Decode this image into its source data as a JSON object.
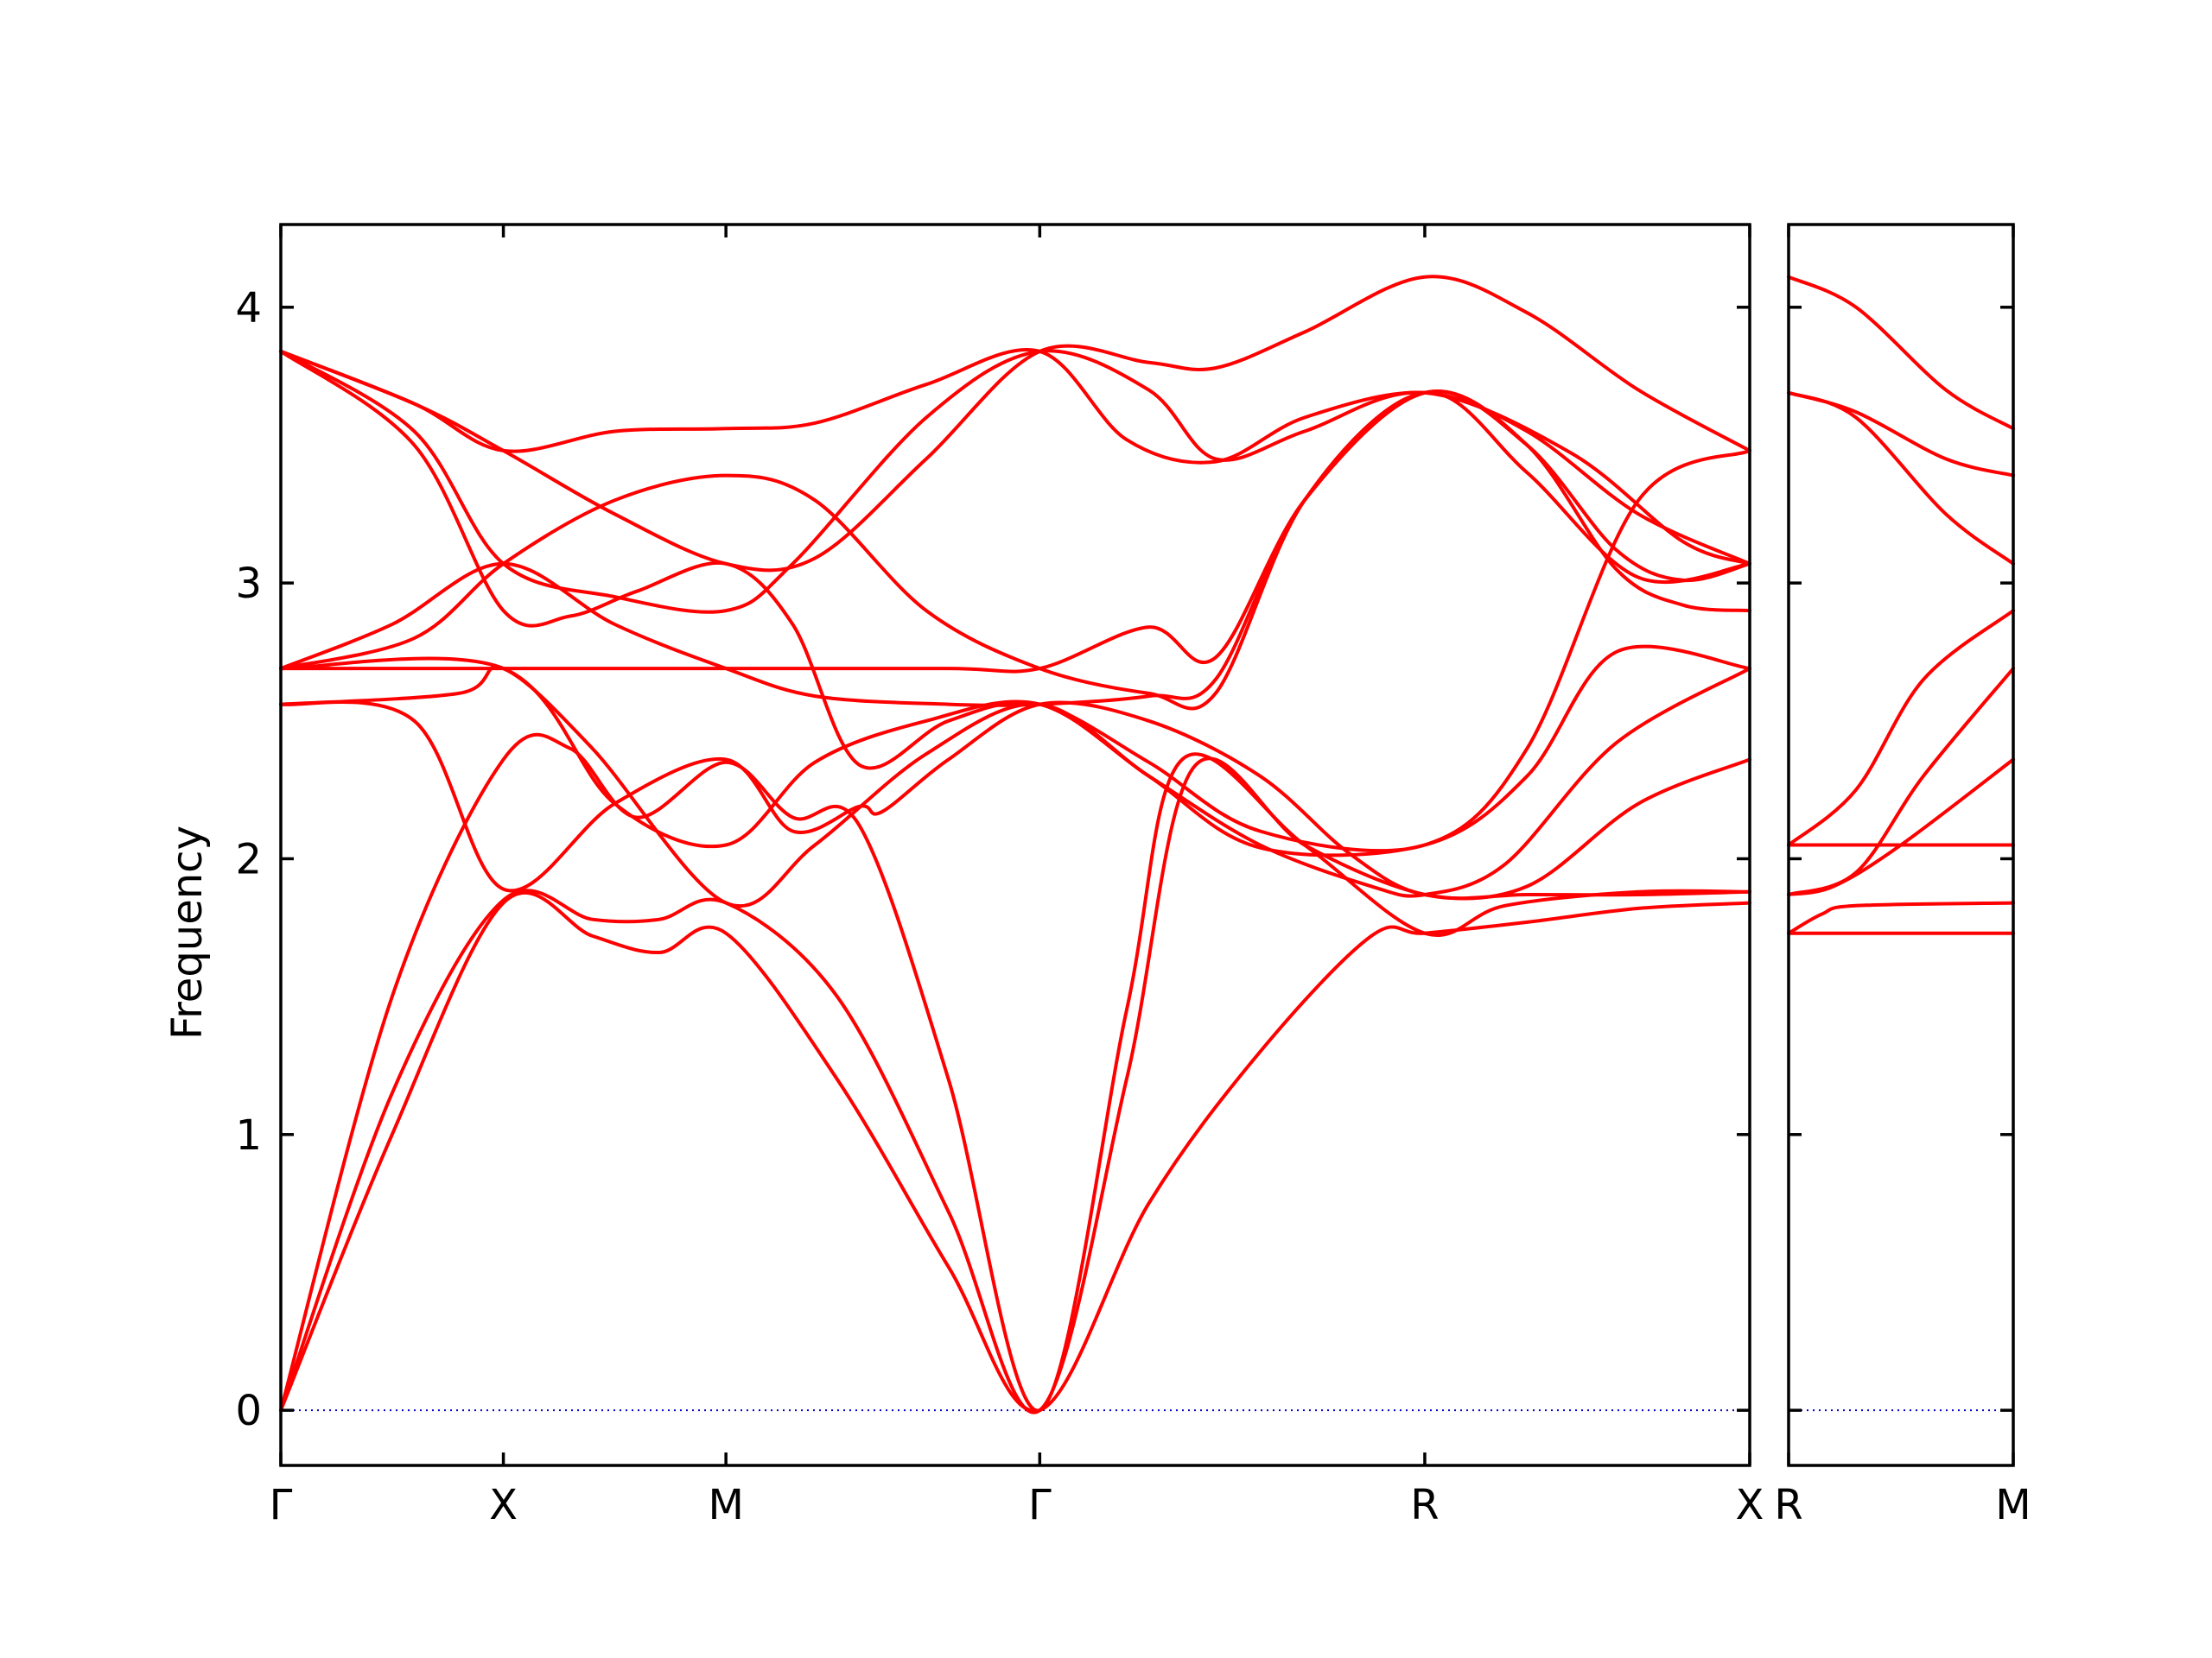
{
  "chart_data": {
    "type": "line",
    "title": "",
    "ylabel": "Frequency",
    "ylim": [
      -0.2,
      4.3
    ],
    "yticks": [
      0,
      1,
      2,
      3,
      4
    ],
    "grid": false,
    "colors": {
      "bands": "#ff0000",
      "zero_line": "#0000cc"
    },
    "panels": [
      {
        "name": "main",
        "xlim": [
          0,
          6.6
        ],
        "x_labels": [
          {
            "x": 0,
            "label": "Γ"
          },
          {
            "x": 1,
            "label": "X"
          },
          {
            "x": 2,
            "label": "M"
          },
          {
            "x": 3.41,
            "label": "Γ"
          },
          {
            "x": 5.14,
            "label": "R"
          },
          {
            "x": 6.6,
            "label": "X"
          }
        ],
        "bands": [
          [
            [
              0,
              0
            ],
            [
              0.5,
              1.0
            ],
            [
              1,
              1.84
            ],
            [
              1.4,
              1.72
            ],
            [
              1.7,
              1.66
            ],
            [
              2,
              1.73
            ],
            [
              2.5,
              1.2
            ],
            [
              3,
              0.52
            ],
            [
              3.41,
              0
            ],
            [
              3.9,
              0.75
            ],
            [
              4.4,
              1.3
            ],
            [
              4.9,
              1.72
            ],
            [
              5.14,
              1.73
            ],
            [
              5.6,
              1.77
            ],
            [
              6.1,
              1.82
            ],
            [
              6.6,
              1.84
            ]
          ],
          [
            [
              0,
              0
            ],
            [
              0.5,
              1.15
            ],
            [
              1,
              1.85
            ],
            [
              1.4,
              1.78
            ],
            [
              1.7,
              1.78
            ],
            [
              2,
              1.84
            ],
            [
              2.5,
              1.5
            ],
            [
              3,
              0.72
            ],
            [
              3.41,
              0
            ],
            [
              3.8,
              1.2
            ],
            [
              4.1,
              2.33
            ],
            [
              4.6,
              2.05
            ],
            [
              5.14,
              1.87
            ],
            [
              5.6,
              1.87
            ],
            [
              6.1,
              1.87
            ],
            [
              6.6,
              1.88
            ]
          ],
          [
            [
              0,
              0
            ],
            [
              0.5,
              1.5
            ],
            [
              1,
              2.36
            ],
            [
              1.3,
              2.4
            ],
            [
              1.6,
              2.15
            ],
            [
              2,
              2.35
            ],
            [
              2.3,
              2.15
            ],
            [
              2.6,
              2.12
            ],
            [
              3,
              1.2
            ],
            [
              3.41,
              0
            ],
            [
              3.8,
              1.45
            ],
            [
              4.05,
              2.36
            ],
            [
              4.6,
              2.05
            ],
            [
              5.14,
              1.73
            ],
            [
              5.5,
              1.83
            ],
            [
              6.1,
              1.88
            ],
            [
              6.6,
              1.88
            ]
          ],
          [
            [
              0,
              2.56
            ],
            [
              0.6,
              2.5
            ],
            [
              1,
              1.89
            ],
            [
              1.5,
              2.2
            ],
            [
              2,
              2.36
            ],
            [
              2.3,
              2.1
            ],
            [
              2.6,
              2.19
            ],
            [
              2.7,
              2.17
            ],
            [
              3,
              2.36
            ],
            [
              3.41,
              2.56
            ],
            [
              3.9,
              2.5
            ],
            [
              4.4,
              2.3
            ],
            [
              4.8,
              2.02
            ],
            [
              5.14,
              1.87
            ],
            [
              5.6,
              1.9
            ],
            [
              6.1,
              2.2
            ],
            [
              6.6,
              2.36
            ]
          ],
          [
            [
              0,
              2.56
            ],
            [
              0.8,
              2.6
            ],
            [
              1,
              2.69
            ],
            [
              1.4,
              2.4
            ],
            [
              2,
              1.84
            ],
            [
              2.4,
              2.05
            ],
            [
              2.9,
              2.38
            ],
            [
              3.41,
              2.56
            ],
            [
              3.9,
              2.3
            ],
            [
              4.4,
              2.05
            ],
            [
              4.9,
              1.9
            ],
            [
              5.14,
              1.87
            ],
            [
              5.5,
              1.98
            ],
            [
              6,
              2.42
            ],
            [
              6.6,
              2.69
            ]
          ],
          [
            [
              0,
              2.69
            ],
            [
              1,
              2.69
            ],
            [
              1.5,
              2.2
            ],
            [
              2,
              2.05
            ],
            [
              2.4,
              2.35
            ],
            [
              2.9,
              2.5
            ],
            [
              3.41,
              2.56
            ],
            [
              3.9,
              2.3
            ],
            [
              4.4,
              2.04
            ],
            [
              5.14,
              2.05
            ],
            [
              5.6,
              2.3
            ],
            [
              6,
              2.75
            ],
            [
              6.6,
              2.69
            ]
          ],
          [
            [
              0,
              2.69
            ],
            [
              1,
              2.69
            ],
            [
              2,
              2.69
            ],
            [
              3,
              2.69
            ],
            [
              3.41,
              2.69
            ],
            [
              3.9,
              2.84
            ],
            [
              4.2,
              2.73
            ],
            [
              4.6,
              3.3
            ],
            [
              5.14,
              3.69
            ],
            [
              5.6,
              3.5
            ],
            [
              6,
              3.05
            ],
            [
              6.3,
              2.92
            ],
            [
              6.6,
              2.9
            ]
          ],
          [
            [
              0,
              2.69
            ],
            [
              0.5,
              2.85
            ],
            [
              1,
              3.07
            ],
            [
              1.5,
              2.85
            ],
            [
              2,
              2.69
            ],
            [
              2.4,
              2.59
            ],
            [
              3,
              2.56
            ],
            [
              3.41,
              2.56
            ],
            [
              3.9,
              2.59
            ],
            [
              4.2,
              2.65
            ],
            [
              4.6,
              3.3
            ],
            [
              5.14,
              3.69
            ],
            [
              5.6,
              3.5
            ],
            [
              6,
              3.12
            ],
            [
              6.3,
              3.01
            ],
            [
              6.6,
              3.07
            ]
          ],
          [
            [
              0,
              3.84
            ],
            [
              0.6,
              3.5
            ],
            [
              1,
              2.9
            ],
            [
              1.3,
              2.88
            ],
            [
              1.6,
              2.97
            ],
            [
              2,
              3.07
            ],
            [
              2.3,
              2.85
            ],
            [
              2.6,
              2.34
            ],
            [
              3,
              2.5
            ],
            [
              3.41,
              2.56
            ],
            [
              3.9,
              2.35
            ],
            [
              4.4,
              2.1
            ],
            [
              5.14,
              2.05
            ],
            [
              5.6,
              2.4
            ],
            [
              6.1,
              3.3
            ],
            [
              6.6,
              3.48
            ]
          ],
          [
            [
              0,
              3.84
            ],
            [
              0.6,
              3.55
            ],
            [
              1,
              3.07
            ],
            [
              1.5,
              2.95
            ],
            [
              2,
              2.9
            ],
            [
              2.3,
              3.07
            ],
            [
              2.9,
              3.6
            ],
            [
              3.41,
              3.84
            ],
            [
              3.9,
              3.7
            ],
            [
              4.2,
              3.45
            ],
            [
              4.6,
              3.55
            ],
            [
              5.14,
              3.69
            ],
            [
              5.8,
              3.47
            ],
            [
              6.3,
              3.15
            ],
            [
              6.6,
              3.07
            ]
          ],
          [
            [
              0,
              3.84
            ],
            [
              0.6,
              3.65
            ],
            [
              1,
              3.48
            ],
            [
              1.5,
              3.25
            ],
            [
              2,
              3.07
            ],
            [
              2.4,
              3.09
            ],
            [
              2.9,
              3.45
            ],
            [
              3.41,
              3.84
            ],
            [
              3.9,
              3.8
            ],
            [
              4.2,
              3.78
            ],
            [
              4.6,
              3.91
            ],
            [
              5.14,
              4.11
            ],
            [
              5.6,
              3.98
            ],
            [
              6.1,
              3.7
            ],
            [
              6.6,
              3.48
            ]
          ],
          [
            [
              0,
              3.84
            ],
            [
              0.6,
              3.65
            ],
            [
              1,
              3.48
            ],
            [
              1.5,
              3.55
            ],
            [
              2,
              3.56
            ],
            [
              2.4,
              3.58
            ],
            [
              2.9,
              3.72
            ],
            [
              3.41,
              3.84
            ],
            [
              3.8,
              3.52
            ],
            [
              4.2,
              3.44
            ],
            [
              4.6,
              3.6
            ],
            [
              5.14,
              3.69
            ],
            [
              5.6,
              3.55
            ],
            [
              6.1,
              3.25
            ],
            [
              6.6,
              3.07
            ]
          ],
          [
            [
              0,
              2.69
            ],
            [
              0.6,
              2.8
            ],
            [
              1,
              3.07
            ],
            [
              1.5,
              3.3
            ],
            [
              2,
              3.39
            ],
            [
              2.4,
              3.3
            ],
            [
              2.9,
              2.9
            ],
            [
              3.41,
              2.69
            ],
            [
              3.9,
              2.6
            ],
            [
              4.2,
              2.6
            ],
            [
              4.6,
              3.3
            ],
            [
              5.14,
              3.69
            ],
            [
              5.6,
              3.4
            ],
            [
              6.1,
              3.02
            ],
            [
              6.6,
              3.07
            ]
          ]
        ]
      },
      {
        "name": "R-M",
        "xlim": [
          0,
          1
        ],
        "x_labels": [
          {
            "x": 0,
            "label": "R"
          },
          {
            "x": 1,
            "label": "M"
          }
        ],
        "bands": [
          [
            [
              0,
              1.73
            ],
            [
              1,
              1.73
            ]
          ],
          [
            [
              0,
              1.73
            ],
            [
              0.15,
              1.8
            ],
            [
              0.3,
              1.83
            ],
            [
              1,
              1.84
            ]
          ],
          [
            [
              0,
              1.87
            ],
            [
              0.2,
              1.9
            ],
            [
              0.5,
              2.05
            ],
            [
              1,
              2.36
            ]
          ],
          [
            [
              0,
              1.87
            ],
            [
              0.3,
              1.95
            ],
            [
              0.6,
              2.3
            ],
            [
              1,
              2.69
            ]
          ],
          [
            [
              0,
              2.05
            ],
            [
              1,
              2.05
            ]
          ],
          [
            [
              0,
              2.05
            ],
            [
              0.3,
              2.25
            ],
            [
              0.6,
              2.65
            ],
            [
              1,
              2.9
            ]
          ],
          [
            [
              0,
              3.69
            ],
            [
              0.3,
              3.6
            ],
            [
              0.7,
              3.25
            ],
            [
              1,
              3.07
            ]
          ],
          [
            [
              0,
              3.69
            ],
            [
              0.3,
              3.62
            ],
            [
              0.7,
              3.45
            ],
            [
              1,
              3.39
            ]
          ],
          [
            [
              0,
              4.11
            ],
            [
              0.3,
              4.0
            ],
            [
              0.7,
              3.7
            ],
            [
              1,
              3.56
            ]
          ]
        ]
      }
    ]
  }
}
